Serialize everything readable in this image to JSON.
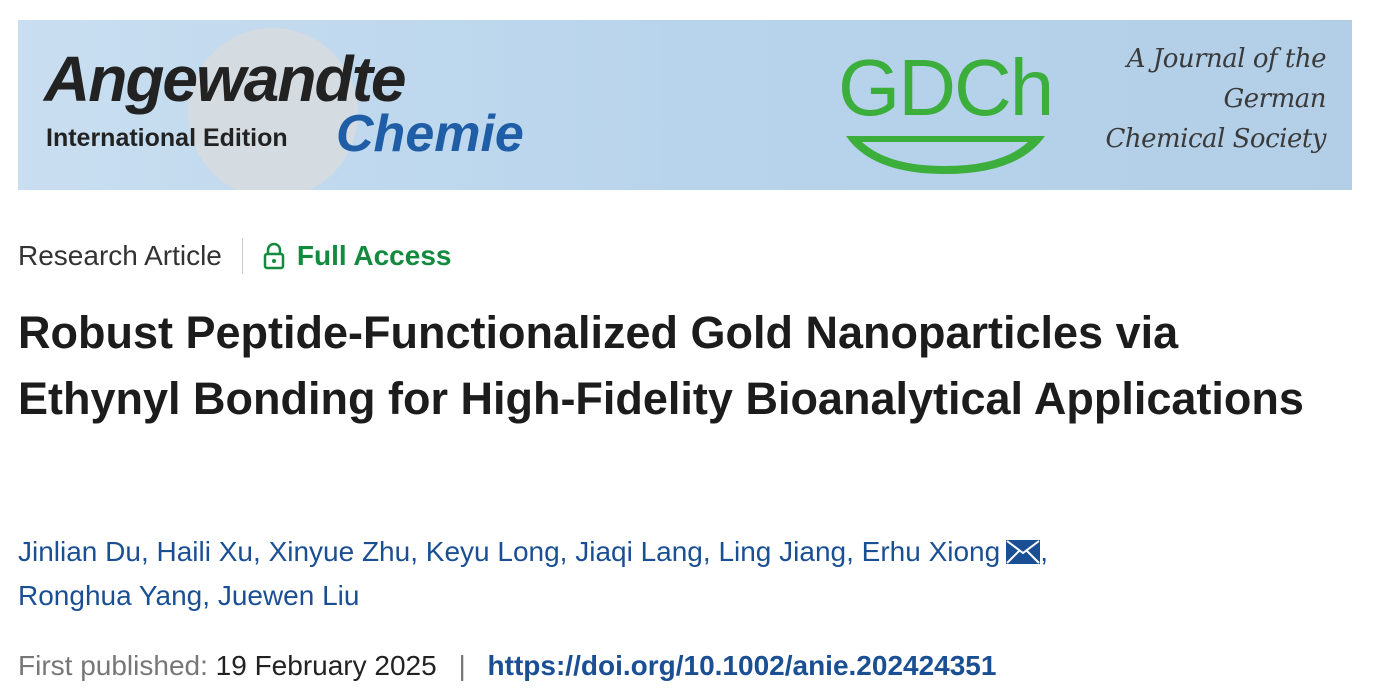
{
  "banner": {
    "journal_name_1": "Angewandte",
    "edition": "International Edition",
    "journal_name_2": "Chemie",
    "society_logo": "GDCh",
    "society_lines": [
      "A Journal of the",
      "German",
      "Chemical Society"
    ]
  },
  "article": {
    "type": "Research Article",
    "access": "Full Access",
    "title": "Robust Peptide-Functionalized Gold Nanoparticles via Ethynyl Bonding for High-Fidelity Bioanalytical Applications",
    "authors": [
      {
        "name": "Jinlian Du"
      },
      {
        "name": "Haili Xu"
      },
      {
        "name": "Xinyue Zhu"
      },
      {
        "name": "Keyu Long"
      },
      {
        "name": "Jiaqi Lang"
      },
      {
        "name": "Ling Jiang"
      },
      {
        "name": "Erhu Xiong",
        "email_icon": true
      },
      {
        "name": "Ronghua Yang"
      },
      {
        "name": "Juewen Liu"
      }
    ],
    "author_separator": ",",
    "published_label": "First published:",
    "published_date": "19 February 2025",
    "divider": "|",
    "doi": "https://doi.org/10.1002/anie.202424351"
  }
}
